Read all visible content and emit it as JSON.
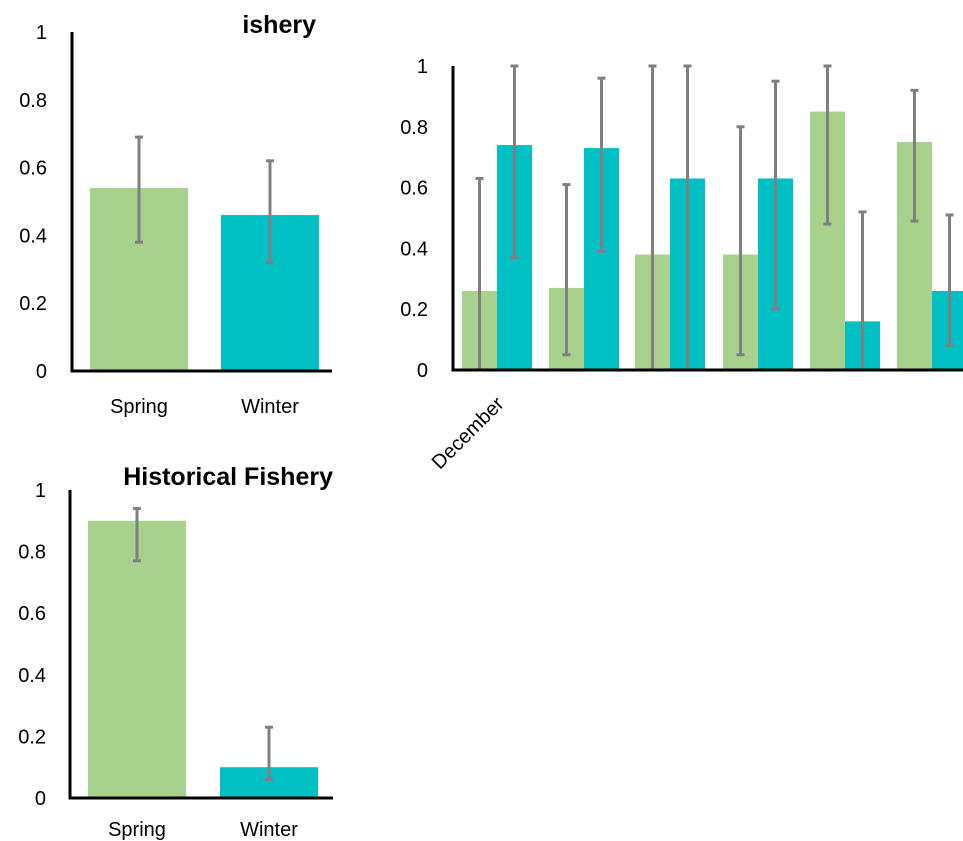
{
  "chart_data": [
    {
      "type": "bar",
      "title": "ishery",
      "categories": [
        "Spring",
        "Winter"
      ],
      "values": [
        0.54,
        0.46
      ],
      "errors": [
        [
          0.38,
          0.69
        ],
        [
          0.32,
          0.62
        ]
      ],
      "ylim": [
        0,
        1
      ],
      "yticks": [
        "0",
        "0.2",
        "0.4",
        "0.6",
        "0.8",
        "1"
      ],
      "xlabel": "",
      "ylabel": "",
      "colors": [
        "#a9d18e",
        "#00c0c3"
      ],
      "grid": false
    },
    {
      "type": "bar",
      "title": "",
      "categories": [
        "December",
        "",
        "",
        "",
        "",
        ""
      ],
      "series": [
        {
          "values": [
            0.26,
            0.27,
            0.38,
            0.38,
            0.85,
            0.75
          ],
          "errors": [
            [
              0.0,
              0.63
            ],
            [
              0.05,
              0.61
            ],
            [
              0.0,
              1.0
            ],
            [
              0.05,
              0.8
            ],
            [
              0.48,
              1.0
            ],
            [
              0.49,
              0.92
            ]
          ],
          "color": "#a9d18e"
        },
        {
          "values": [
            0.74,
            0.73,
            0.63,
            0.63,
            0.16,
            0.26
          ],
          "errors": [
            [
              0.37,
              1.0
            ],
            [
              0.39,
              0.96
            ],
            [
              0.0,
              1.0
            ],
            [
              0.2,
              0.95
            ],
            [
              0.0,
              0.52
            ],
            [
              0.08,
              0.51
            ]
          ],
          "color": "#00c0c3"
        }
      ],
      "ylim": [
        0,
        1
      ],
      "yticks": [
        "0",
        "0.2",
        "0.4",
        "0.6",
        "0.8",
        "1"
      ],
      "xlabel": "",
      "ylabel": "",
      "grid": false
    },
    {
      "type": "bar",
      "title": "Historical Fishery",
      "categories": [
        "Spring",
        "Winter"
      ],
      "values": [
        0.9,
        0.1
      ],
      "errors": [
        [
          0.77,
          0.94
        ],
        [
          0.06,
          0.23
        ]
      ],
      "ylim": [
        0,
        1
      ],
      "yticks": [
        "0",
        "0.2",
        "0.4",
        "0.6",
        "0.8",
        "1"
      ],
      "xlabel": "",
      "ylabel": "",
      "colors": [
        "#a9d18e",
        "#00c0c3"
      ],
      "grid": false
    }
  ]
}
